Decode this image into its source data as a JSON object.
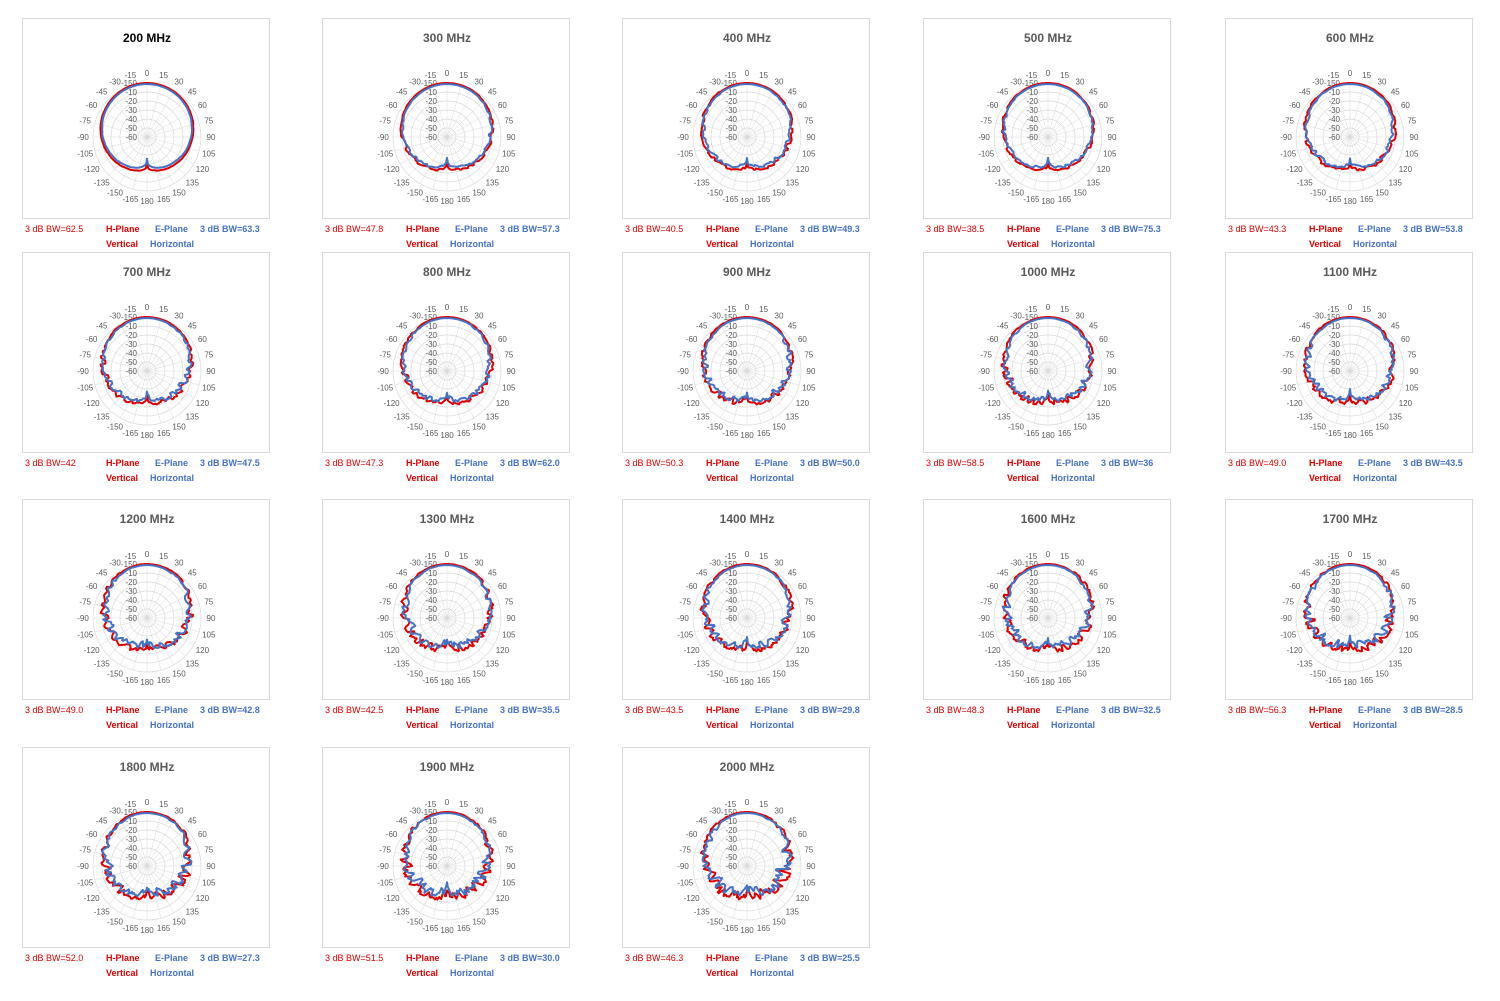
{
  "captions": {
    "h_plane": "H-Plane",
    "e_plane": "E-Plane",
    "vertical": "Vertical",
    "horizontal": "Horizontal"
  },
  "colors": {
    "h_plane": "#e00000",
    "e_plane": "#4472c4",
    "grid": "#d9d9d9",
    "text": "#595959"
  },
  "chart_data": [
    {
      "type": "polar-radar",
      "title": "200 MHz",
      "h_bw": "3 dB BW=62.5",
      "e_bw": "3 dB BW=63.3",
      "angle_labels": [
        "0",
        "15",
        "30",
        "45",
        "60",
        "75",
        "90",
        "105",
        "120",
        "135",
        "150",
        "165",
        "180",
        "-165",
        "-150",
        "-135",
        "-120",
        "-105",
        "-90",
        "-75",
        "-60",
        "-45",
        "-30",
        "-15"
      ],
      "radial_labels": [
        "-150",
        "-10",
        "-20",
        "-30",
        "-40",
        "-50",
        "-60"
      ],
      "lobes": 0.02
    },
    {
      "type": "polar-radar",
      "title": "300 MHz",
      "h_bw": "3 dB BW=47.8",
      "e_bw": "3 dB BW=57.3",
      "lobes": 0.12
    },
    {
      "type": "polar-radar",
      "title": "400 MHz",
      "h_bw": "3 dB BW=40.5",
      "e_bw": "3 dB BW=49.3",
      "lobes": 0.18
    },
    {
      "type": "polar-radar",
      "title": "500 MHz",
      "h_bw": "3 dB BW=38.5",
      "e_bw": "3 dB BW=75.3",
      "lobes": 0.14
    },
    {
      "type": "polar-radar",
      "title": "600 MHz",
      "h_bw": "3 dB BW=43.3",
      "e_bw": "3 dB BW=53.8",
      "lobes": 0.2
    },
    {
      "type": "polar-radar",
      "title": "700 MHz",
      "h_bw": "3 dB BW=42",
      "e_bw": "3 dB BW=47.5",
      "lobes": 0.26
    },
    {
      "type": "polar-radar",
      "title": "800 MHz",
      "h_bw": "3 dB BW=47.3",
      "e_bw": "3 dB BW=62.0",
      "lobes": 0.26
    },
    {
      "type": "polar-radar",
      "title": "900 MHz",
      "h_bw": "3 dB BW=50.3",
      "e_bw": "3 dB BW=50.0",
      "lobes": 0.3
    },
    {
      "type": "polar-radar",
      "title": "1000 MHz",
      "h_bw": "3 dB BW=58.5",
      "e_bw": "3 dB BW=36",
      "lobes": 0.34
    },
    {
      "type": "polar-radar",
      "title": "1100 MHz",
      "h_bw": "3 dB BW=49.0",
      "e_bw": "3 dB BW=43.5",
      "lobes": 0.34
    },
    {
      "type": "polar-radar",
      "title": "1200 MHz",
      "h_bw": "3 dB BW=49.0",
      "e_bw": "3 dB BW=42.8",
      "lobes": 0.36
    },
    {
      "type": "polar-radar",
      "title": "1300 MHz",
      "h_bw": "3 dB BW=42.5",
      "e_bw": "3 dB BW=35.5",
      "lobes": 0.38
    },
    {
      "type": "polar-radar",
      "title": "1400 MHz",
      "h_bw": "3 dB BW=43.5",
      "e_bw": "3 dB BW=29.8",
      "lobes": 0.38
    },
    {
      "type": "polar-radar",
      "title": "1600 MHz",
      "h_bw": "3 dB BW=48.3",
      "e_bw": "3 dB BW=32.5",
      "lobes": 0.4
    },
    {
      "type": "polar-radar",
      "title": "1700 MHz",
      "h_bw": "3 dB BW=56.3",
      "e_bw": "3 dB BW=28.5",
      "lobes": 0.44
    },
    {
      "type": "polar-radar",
      "title": "1800 MHz",
      "h_bw": "3 dB BW=52.0",
      "e_bw": "3 dB BW=27.3",
      "lobes": 0.46
    },
    {
      "type": "polar-radar",
      "title": "1900 MHz",
      "h_bw": "3 dB BW=51.5",
      "e_bw": "3 dB BW=30.0",
      "lobes": 0.5
    },
    {
      "type": "polar-radar",
      "title": "2000 MHz",
      "h_bw": "3 dB BW=46.3",
      "e_bw": "3 dB BW=25.5",
      "lobes": 0.55
    }
  ]
}
